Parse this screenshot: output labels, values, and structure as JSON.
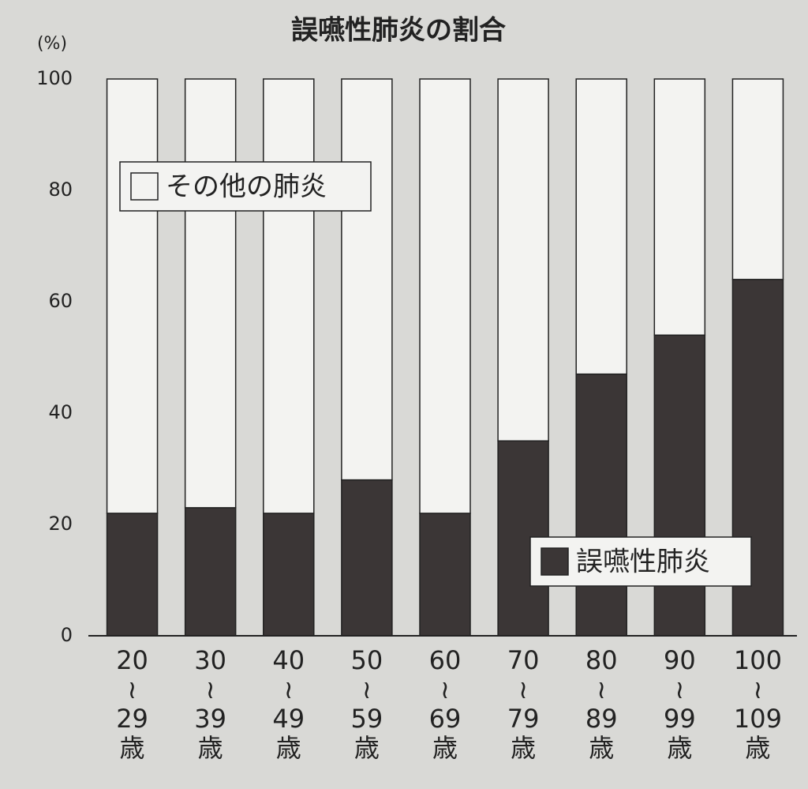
{
  "chart_data": {
    "type": "stacked_bar",
    "title": "誤嚥性肺炎の割合",
    "y_label": "(%)",
    "categories": [
      "20\n≀\n29\n歳",
      "30\n≀\n39\n歳",
      "40\n≀\n49\n歳",
      "50\n≀\n59\n歳",
      "60\n≀\n69\n歳",
      "70\n≀\n79\n歳",
      "80\n≀\n89\n歳",
      "90\n≀\n99\n歳",
      "100\n≀\n109\n歳"
    ],
    "series": [
      {
        "name": "誤嚥性肺炎",
        "color": "#3b3636",
        "values": [
          22,
          23,
          22,
          28,
          22,
          35,
          47,
          54,
          64
        ]
      },
      {
        "name": "その他の肺炎",
        "color": "#f3f3f1",
        "values": [
          78,
          77,
          78,
          72,
          78,
          65,
          53,
          46,
          36
        ]
      }
    ],
    "ylim": [
      0,
      100
    ],
    "yticks": [
      0,
      20,
      40,
      60,
      80,
      100
    ],
    "grid": false
  }
}
